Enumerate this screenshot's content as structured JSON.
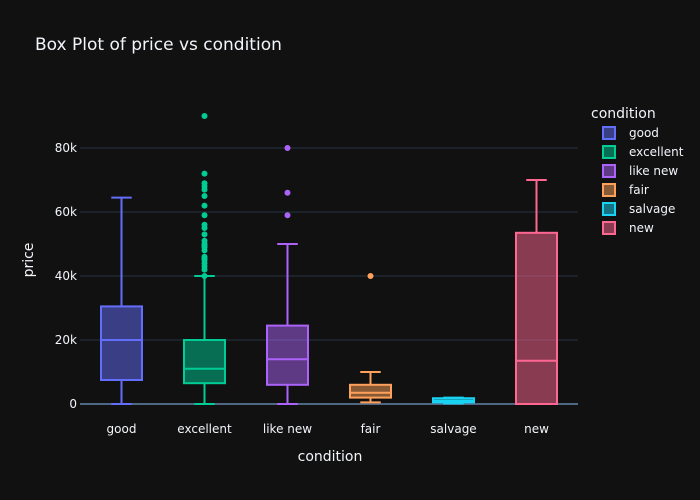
{
  "chart_data": {
    "type": "box",
    "title": "Box Plot of price vs condition",
    "xlabel": "condition",
    "ylabel": "price",
    "ylim": [
      -3000,
      100000
    ],
    "yticks": [
      0,
      20000,
      40000,
      60000,
      80000
    ],
    "ytick_labels": [
      "0",
      "20k",
      "40k",
      "60k",
      "80k"
    ],
    "grid": true,
    "legend_title": "condition",
    "legend_position": "right",
    "categories": [
      "good",
      "excellent",
      "like new",
      "fair",
      "salvage",
      "new"
    ],
    "series": [
      {
        "name": "good",
        "color": "#636efa",
        "min": 0,
        "q1": 7500,
        "median": 20000,
        "q3": 30500,
        "max": 64500,
        "outliers": []
      },
      {
        "name": "excellent",
        "color": "#00cc96",
        "min": 0,
        "q1": 6500,
        "median": 11000,
        "q3": 20000,
        "max": 40000,
        "outliers": [
          90000,
          72000,
          69000,
          68000,
          67000,
          65000,
          62000,
          59000,
          56000,
          55000,
          53000,
          51000,
          50000,
          49500,
          49000,
          48000,
          46000,
          45500,
          45000,
          44000,
          43000,
          42000,
          40000
        ]
      },
      {
        "name": "like new",
        "color": "#ab63fa",
        "min": 0,
        "q1": 6000,
        "median": 14000,
        "q3": 24500,
        "max": 50000,
        "outliers": [
          80000,
          66000,
          59000
        ]
      },
      {
        "name": "fair",
        "color": "#ffa15a",
        "min": 500,
        "q1": 2000,
        "median": 3500,
        "q3": 6000,
        "max": 10000,
        "outliers": [
          40000
        ]
      },
      {
        "name": "salvage",
        "color": "#19d3f3",
        "min": 200,
        "q1": 500,
        "median": 1000,
        "q3": 1800,
        "max": 2000,
        "outliers": []
      },
      {
        "name": "new",
        "color": "#ff6692",
        "min": 0,
        "q1": 0,
        "median": 13500,
        "q3": 53500,
        "max": 70000,
        "outliers": []
      }
    ]
  }
}
